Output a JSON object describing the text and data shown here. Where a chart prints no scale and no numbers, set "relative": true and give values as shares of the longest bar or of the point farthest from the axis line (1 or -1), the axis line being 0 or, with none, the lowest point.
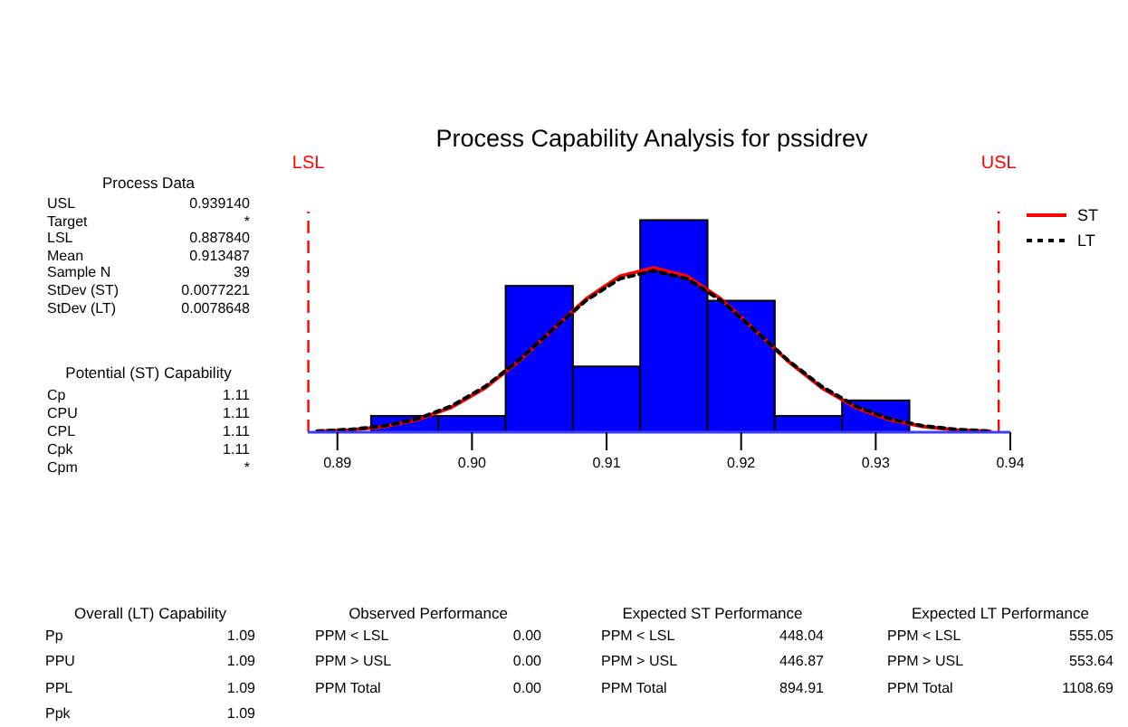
{
  "chart_data": {
    "type": "histogram",
    "title": "Process Capability Analysis for pssidrev",
    "relative": true,
    "color": "#0000ff",
    "bins": [
      0.8925,
      0.8975,
      0.9025,
      0.9075,
      0.9125,
      0.9175,
      0.9225,
      0.9275,
      0.9325
    ],
    "values": [
      0.077,
      0.077,
      0.69,
      0.31,
      1,
      0.62,
      0.077,
      0.15
    ],
    "series": [
      {
        "type": "line",
        "name": "ST",
        "color": "#ff0000",
        "line_style": "solid",
        "x": [
          0.8885,
          0.891,
          0.8935,
          0.896,
          0.8985,
          0.901,
          0.9035,
          0.906,
          0.9085,
          0.911,
          0.9135,
          0.916,
          0.9185,
          0.921,
          0.9235,
          0.926,
          0.9285,
          0.931,
          0.9335,
          0.936,
          0.9385
        ],
        "values": [
          0.004,
          0.011,
          0.027,
          0.06,
          0.118,
          0.21,
          0.336,
          0.484,
          0.629,
          0.736,
          0.775,
          0.735,
          0.628,
          0.483,
          0.334,
          0.209,
          0.117,
          0.059,
          0.027,
          0.011,
          0.004
        ]
      },
      {
        "type": "line",
        "name": "LT",
        "color": "#000000",
        "line_style": "dotted",
        "x": [
          0.8885,
          0.891,
          0.8935,
          0.896,
          0.8985,
          0.901,
          0.9035,
          0.906,
          0.9085,
          0.911,
          0.9135,
          0.916,
          0.9185,
          0.921,
          0.9235,
          0.926,
          0.9285,
          0.931,
          0.9335,
          0.936,
          0.9385
        ],
        "values": [
          0.005,
          0.013,
          0.03,
          0.064,
          0.124,
          0.216,
          0.34,
          0.484,
          0.622,
          0.724,
          0.761,
          0.723,
          0.621,
          0.482,
          0.338,
          0.215,
          0.123,
          0.064,
          0.03,
          0.013,
          0.005
        ]
      }
    ],
    "xlim": [
      0.8878,
      0.94
    ],
    "xticks": [
      0.89,
      {
        "value": 0.9,
        "label": "0.90"
      },
      0.91,
      0.92,
      0.93,
      0.94
    ],
    "ref_lines": [
      {
        "axis": "x",
        "value": 0.88784,
        "label": "LSL",
        "color": "#ff0000",
        "line_style": "dashed"
      },
      {
        "axis": "x",
        "value": 0.93914,
        "label": "USL",
        "color": "#ff0000",
        "line_style": "dashed"
      }
    ],
    "legend": "top right",
    "marker": "none",
    "annotations": [
      "Process Data",
      "USL",
      "0.939140",
      "Target",
      "*",
      "LSL",
      "0.887840",
      "Mean",
      "0.913487",
      "Sample N",
      "39",
      "StDev (ST)",
      "0.0077221",
      "StDev (LT)",
      "0.0078648",
      "Potential (ST) Capability",
      "Cp",
      "1.11",
      "CPU",
      "1.11",
      "CPL",
      "1.11",
      "Cpk",
      "1.11",
      "Cpm",
      "*",
      "Overall (LT) Capability",
      "Pp",
      "1.09",
      "PPU",
      "1.09",
      "PPL",
      "1.09",
      "Ppk",
      "1.09",
      "Observed Performance",
      "PPM < LSL",
      "0.00",
      "PPM > USL",
      "0.00",
      "PPM Total",
      "0.00",
      "Expected ST Performance",
      "PPM < LSL",
      "448.04",
      "PPM > USL",
      "446.87",
      "PPM Total",
      "894.91",
      "Expected LT Performance",
      "PPM < LSL",
      "555.05",
      "PPM > USL",
      "553.64",
      "PPM Total",
      "1108.69"
    ]
  }
}
